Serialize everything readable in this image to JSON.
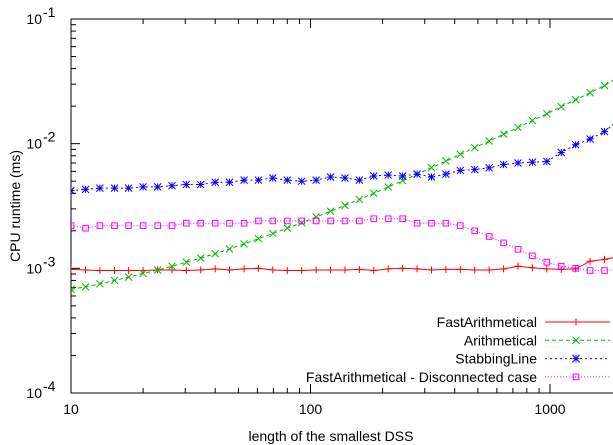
{
  "chart_data": {
    "type": "line",
    "title": "",
    "xlabel": "length of the smallest DSS",
    "ylabel": "CPU runtime (ms)",
    "xscale": "log",
    "yscale": "log",
    "xlim": [
      10,
      2000
    ],
    "ylim": [
      0.0001,
      0.1
    ],
    "grid": false,
    "legend_position": "bottom-right",
    "x_ticks": [
      {
        "value": 10,
        "label": "10"
      },
      {
        "value": 100,
        "label": "100"
      },
      {
        "value": 1000,
        "label": "1000"
      }
    ],
    "y_ticks": [
      {
        "value": 0.0001,
        "base": "10",
        "exp": "-4"
      },
      {
        "value": 0.001,
        "base": "10",
        "exp": "-3"
      },
      {
        "value": 0.01,
        "base": "10",
        "exp": "-2"
      },
      {
        "value": 0.1,
        "base": "10",
        "exp": "-1"
      }
    ],
    "x": [
      10,
      11.5,
      13.2,
      15.2,
      17.4,
      20,
      23,
      26.4,
      30.3,
      34.8,
      40,
      45.9,
      52.8,
      60.6,
      69.6,
      80,
      91.9,
      105.6,
      121.3,
      139.3,
      160,
      183.8,
      211.1,
      242.5,
      278.6,
      320,
      367.6,
      422.2,
      485,
      557.2,
      640,
      735.2,
      844.5,
      970,
      1114,
      1280,
      1470,
      1689,
      1940
    ],
    "series": [
      {
        "name": "FastArithmetical",
        "color": "#ff0000",
        "marker": "plus",
        "values": [
          0.00098,
          0.00097,
          0.00096,
          0.00096,
          0.00096,
          0.00096,
          0.00097,
          0.00097,
          0.00096,
          0.00097,
          0.00099,
          0.00097,
          0.00099,
          0.001,
          0.00097,
          0.00096,
          0.00096,
          0.00097,
          0.00097,
          0.00097,
          0.00098,
          0.00096,
          0.00099,
          0.001,
          0.00099,
          0.00097,
          0.00098,
          0.00098,
          0.00097,
          0.00097,
          0.00099,
          0.00104,
          0.00101,
          0.00099,
          0.00098,
          0.00099,
          0.00114,
          0.00118,
          0.00124
        ]
      },
      {
        "name": "Arithmetical",
        "color": "#00bb00",
        "marker": "cross",
        "values": [
          0.00068,
          0.00071,
          0.00075,
          0.0008,
          0.00085,
          0.00091,
          0.00097,
          0.00104,
          0.00112,
          0.00121,
          0.00131,
          0.00143,
          0.00157,
          0.00173,
          0.0019,
          0.0021,
          0.00232,
          0.00258,
          0.00287,
          0.0032,
          0.00357,
          0.004,
          0.00449,
          0.00505,
          0.00569,
          0.00642,
          0.00725,
          0.0082,
          0.00929,
          0.0105,
          0.0119,
          0.0135,
          0.0153,
          0.0174,
          0.0198,
          0.0225,
          0.0256,
          0.0292,
          0.0345
        ]
      },
      {
        "name": "StabbingLine",
        "color": "#0000ff",
        "marker": "star",
        "values": [
          0.0042,
          0.0043,
          0.0044,
          0.0044,
          0.0044,
          0.0045,
          0.0045,
          0.0046,
          0.0047,
          0.0047,
          0.0049,
          0.0049,
          0.0051,
          0.0051,
          0.0053,
          0.0051,
          0.005,
          0.0051,
          0.0054,
          0.0053,
          0.0051,
          0.0055,
          0.0056,
          0.0055,
          0.0057,
          0.0054,
          0.0057,
          0.0061,
          0.0062,
          0.0064,
          0.0068,
          0.007,
          0.0071,
          0.0072,
          0.0085,
          0.0098,
          0.0109,
          0.0125,
          0.0155
        ]
      },
      {
        "name": "FastArithmetical - Disconnected case",
        "color": "#ff00ff",
        "marker": "square",
        "values": [
          0.0022,
          0.0021,
          0.0022,
          0.0022,
          0.0022,
          0.0022,
          0.0022,
          0.0022,
          0.0023,
          0.0023,
          0.0023,
          0.0023,
          0.0023,
          0.0024,
          0.0024,
          0.0024,
          0.0024,
          0.0024,
          0.0024,
          0.0024,
          0.0024,
          0.0025,
          0.0025,
          0.0025,
          0.0023,
          0.0023,
          0.0023,
          0.0022,
          0.002,
          0.0018,
          0.0016,
          0.00142,
          0.00126,
          0.00112,
          0.00104,
          0.001,
          0.00096,
          0.00096,
          0.00098
        ]
      }
    ]
  }
}
